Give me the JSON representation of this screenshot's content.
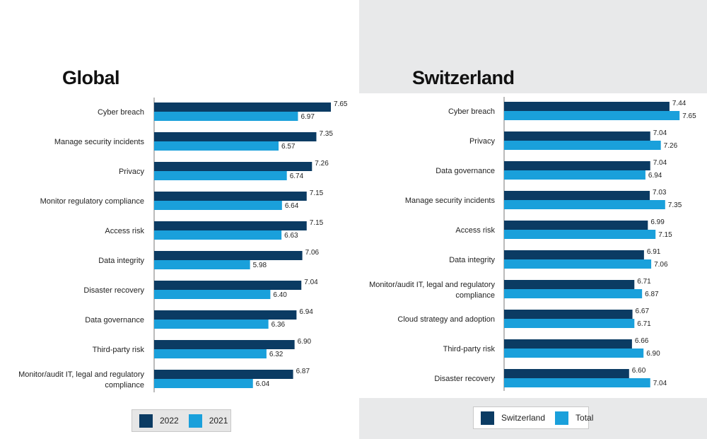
{
  "colors": {
    "dark": "#0b3b63",
    "light": "#1aa0db",
    "axis": "#777777",
    "right_bg": "#e8e9ea"
  },
  "chart_data": [
    {
      "type": "bar",
      "orientation": "horizontal",
      "title": "Global",
      "categories": [
        [
          "Cyber breach"
        ],
        [
          "Manage security incidents"
        ],
        [
          "Privacy"
        ],
        [
          "Monitor regulatory compliance"
        ],
        [
          "Access risk"
        ],
        [
          "Data integrity"
        ],
        [
          "Disaster recovery"
        ],
        [
          "Data governance"
        ],
        [
          "Third-party risk"
        ],
        [
          "Monitor/audit IT, legal and regulatory",
          "compliance"
        ]
      ],
      "series": [
        {
          "name": "2022",
          "color": "#0b3b63",
          "values": [
            7.65,
            7.35,
            7.26,
            7.15,
            7.15,
            7.06,
            7.04,
            6.94,
            6.9,
            6.87
          ],
          "labels": [
            "7.65",
            "7.35",
            "7.26",
            "7.15",
            "7.15",
            "7.06",
            "7.04",
            "6.94",
            "6.90",
            "6.87"
          ]
        },
        {
          "name": "2021",
          "color": "#1aa0db",
          "values": [
            6.97,
            6.57,
            6.74,
            6.64,
            6.63,
            5.98,
            6.4,
            6.36,
            6.32,
            6.04
          ],
          "labels": [
            "6.97",
            "6.57",
            "6.74",
            "6.64",
            "6.63",
            "5.98",
            "6.40",
            "6.36",
            "6.32",
            "6.04"
          ]
        }
      ],
      "legend": "bottom"
    },
    {
      "type": "bar",
      "orientation": "horizontal",
      "title": "Switzerland",
      "categories": [
        [
          "Cyber breach"
        ],
        [
          "Privacy"
        ],
        [
          "Data governance"
        ],
        [
          "Manage security incidents"
        ],
        [
          "Access risk"
        ],
        [
          "Data integrity"
        ],
        [
          "Monitor/audit IT, legal and regulatory",
          "compliance"
        ],
        [
          "Cloud strategy and adoption"
        ],
        [
          "Third-party risk"
        ],
        [
          "Disaster recovery"
        ]
      ],
      "series": [
        {
          "name": "Switzerland",
          "color": "#0b3b63",
          "values": [
            7.44,
            7.04,
            7.04,
            7.03,
            6.99,
            6.91,
            6.71,
            6.67,
            6.66,
            6.6
          ],
          "labels": [
            "7.44",
            "7.04",
            "7.04",
            "7.03",
            "6.99",
            "6.91",
            "6.71",
            "6.67",
            "6.66",
            "6.60"
          ]
        },
        {
          "name": "Total",
          "color": "#1aa0db",
          "values": [
            7.65,
            7.26,
            6.94,
            7.35,
            7.15,
            7.06,
            6.87,
            6.71,
            6.9,
            7.04
          ],
          "labels": [
            "7.65",
            "7.26",
            "6.94",
            "7.35",
            "7.15",
            "7.06",
            "6.87",
            "6.71",
            "6.90",
            "7.04"
          ]
        }
      ],
      "legend": "bottom"
    }
  ]
}
